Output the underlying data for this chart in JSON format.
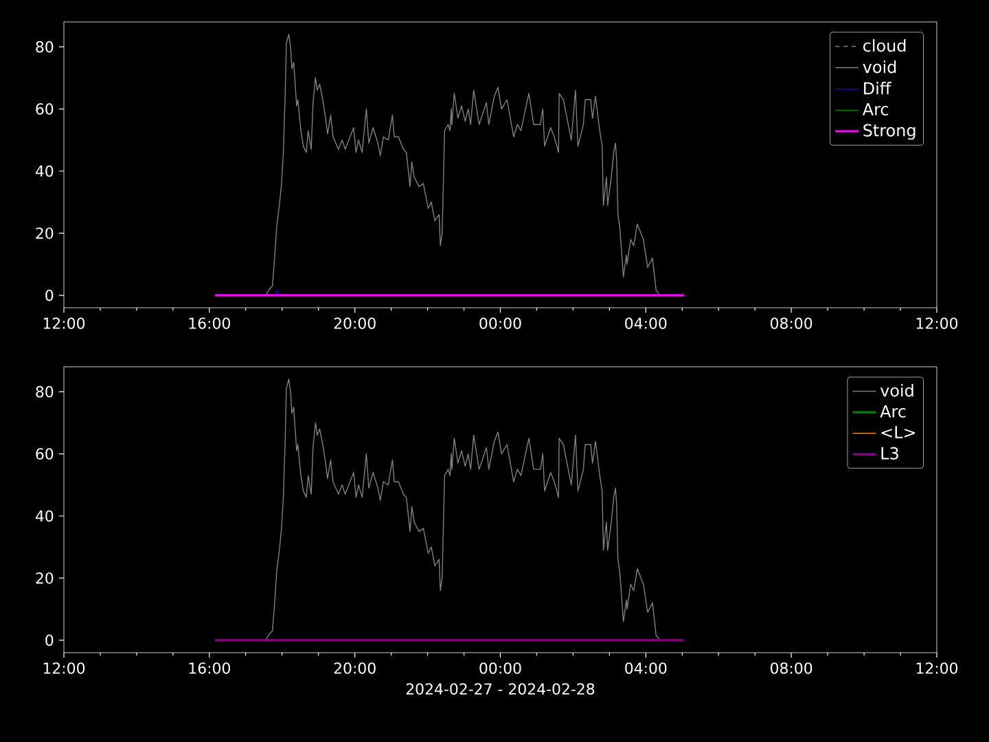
{
  "chart_data": [
    {
      "type": "line",
      "xlim": [
        "2024-02-27T12:00",
        "2024-02-28T12:00"
      ],
      "ylim": [
        -4,
        88
      ],
      "yticks": [
        0,
        20,
        40,
        60,
        80
      ],
      "xticks": [
        {
          "value": "2024-02-27T12:00",
          "label": "12:00"
        },
        {
          "value": "2024-02-27T13:00",
          "label": null
        },
        {
          "value": "2024-02-27T14:00",
          "label": null
        },
        {
          "value": "2024-02-27T15:00",
          "label": null
        },
        {
          "value": "2024-02-27T16:00",
          "label": "16:00"
        },
        {
          "value": "2024-02-27T17:00",
          "label": null
        },
        {
          "value": "2024-02-27T18:00",
          "label": null
        },
        {
          "value": "2024-02-27T19:00",
          "label": null
        },
        {
          "value": "2024-02-27T20:00",
          "label": "20:00"
        },
        {
          "value": "2024-02-27T21:00",
          "label": null
        },
        {
          "value": "2024-02-27T22:00",
          "label": null
        },
        {
          "value": "2024-02-27T23:00",
          "label": null
        },
        {
          "value": "2024-02-28T00:00",
          "label": "00:00"
        },
        {
          "value": "2024-02-28T01:00",
          "label": null
        },
        {
          "value": "2024-02-28T02:00",
          "label": null
        },
        {
          "value": "2024-02-28T03:00",
          "label": null
        },
        {
          "value": "2024-02-28T04:00",
          "label": "04:00"
        },
        {
          "value": "2024-02-28T05:00",
          "label": null
        },
        {
          "value": "2024-02-28T06:00",
          "label": null
        },
        {
          "value": "2024-02-28T07:00",
          "label": null
        },
        {
          "value": "2024-02-28T08:00",
          "label": "08:00"
        },
        {
          "value": "2024-02-28T09:00",
          "label": null
        },
        {
          "value": "2024-02-28T10:00",
          "label": null
        },
        {
          "value": "2024-02-28T11:00",
          "label": null
        },
        {
          "value": "2024-02-28T12:00",
          "label": "12:00"
        }
      ],
      "legend": "top right",
      "series": [
        {
          "name": "cloud",
          "color": "#808080",
          "line_style": "dashed"
        },
        {
          "name": "void",
          "color": "#808080",
          "x": [
            "2024-02-27T17:33",
            "2024-02-27T17:39",
            "2024-02-27T17:44",
            "2024-02-27T17:48",
            "2024-02-27T17:51",
            "2024-02-27T17:56",
            "2024-02-27T17:59",
            "2024-02-27T18:02",
            "2024-02-27T18:05",
            "2024-02-27T18:07",
            "2024-02-27T18:11",
            "2024-02-27T18:14",
            "2024-02-27T18:16",
            "2024-02-27T18:19",
            "2024-02-27T18:24",
            "2024-02-27T18:26",
            "2024-02-27T18:31",
            "2024-02-27T18:35",
            "2024-02-27T18:40",
            "2024-02-27T18:43",
            "2024-02-27T18:48",
            "2024-02-27T18:51",
            "2024-02-27T18:55",
            "2024-02-27T18:58",
            "2024-02-27T19:02",
            "2024-02-27T19:07",
            "2024-02-27T19:11",
            "2024-02-27T19:15",
            "2024-02-27T19:20",
            "2024-02-27T19:24",
            "2024-02-27T19:33",
            "2024-02-27T19:39",
            "2024-02-27T19:44",
            "2024-02-27T19:52",
            "2024-02-27T19:58",
            "2024-02-27T20:02",
            "2024-02-27T20:06",
            "2024-02-27T20:12",
            "2024-02-27T20:19",
            "2024-02-27T20:23",
            "2024-02-27T20:30",
            "2024-02-27T20:38",
            "2024-02-27T20:42",
            "2024-02-27T20:47",
            "2024-02-27T20:55",
            "2024-02-27T21:02",
            "2024-02-27T21:05",
            "2024-02-27T21:12",
            "2024-02-27T21:20",
            "2024-02-27T21:25",
            "2024-02-27T21:31",
            "2024-02-27T21:34",
            "2024-02-27T21:38",
            "2024-02-27T21:46",
            "2024-02-27T21:53",
            "2024-02-27T22:01",
            "2024-02-27T22:06",
            "2024-02-27T22:12",
            "2024-02-27T22:19",
            "2024-02-27T22:21",
            "2024-02-27T22:24",
            "2024-02-27T22:28",
            "2024-02-27T22:34",
            "2024-02-27T22:37",
            "2024-02-27T22:39",
            "2024-02-27T22:40",
            "2024-02-27T22:44",
            "2024-02-27T22:50",
            "2024-02-27T22:56",
            "2024-02-27T23:02",
            "2024-02-27T23:07",
            "2024-02-27T23:11",
            "2024-02-27T23:16",
            "2024-02-27T23:25",
            "2024-02-27T23:37",
            "2024-02-27T23:41",
            "2024-02-27T23:50",
            "2024-02-27T23:56",
            "2024-02-28T00:02",
            "2024-02-28T00:11",
            "2024-02-28T00:22",
            "2024-02-28T00:28",
            "2024-02-28T00:34",
            "2024-02-28T00:47",
            "2024-02-28T00:55",
            "2024-02-28T01:06",
            "2024-02-28T01:10",
            "2024-02-28T01:13",
            "2024-02-28T01:23",
            "2024-02-28T01:29",
            "2024-02-28T01:36",
            "2024-02-28T01:37",
            "2024-02-28T01:44",
            "2024-02-28T01:52",
            "2024-02-28T01:57",
            "2024-02-28T02:04",
            "2024-02-28T02:08",
            "2024-02-28T02:17",
            "2024-02-28T02:20",
            "2024-02-28T02:29",
            "2024-02-28T02:32",
            "2024-02-28T02:37",
            "2024-02-28T02:44",
            "2024-02-28T02:48",
            "2024-02-28T02:50",
            "2024-02-28T02:55",
            "2024-02-28T02:57",
            "2024-02-28T03:03",
            "2024-02-28T03:07",
            "2024-02-28T03:10",
            "2024-02-28T03:12",
            "2024-02-28T03:14",
            "2024-02-28T03:17",
            "2024-02-28T03:23",
            "2024-02-28T03:28",
            "2024-02-28T03:29",
            "2024-02-28T03:35",
            "2024-02-28T03:40",
            "2024-02-28T03:46",
            "2024-02-28T03:56",
            "2024-02-28T04:03",
            "2024-02-28T04:11",
            "2024-02-28T04:17",
            "2024-02-28T04:22"
          ],
          "values": [
            0,
            2,
            3,
            13,
            22,
            30,
            36,
            46,
            64,
            81,
            84,
            80,
            73,
            75,
            61,
            63,
            53,
            48,
            46,
            53,
            47,
            62,
            70,
            66,
            68,
            63,
            58,
            52,
            58,
            51,
            47,
            50,
            47,
            51,
            54,
            46,
            50,
            46,
            60,
            49,
            54,
            49,
            45,
            51,
            50,
            58,
            51,
            51,
            47,
            46,
            35,
            43,
            38,
            35,
            36,
            28,
            30,
            24,
            26,
            16,
            20,
            53,
            55,
            53,
            60,
            55,
            65,
            57,
            61,
            56,
            60,
            55,
            66,
            55,
            62,
            55,
            64,
            67,
            60,
            63,
            51,
            55,
            53,
            65,
            55,
            55,
            60,
            48,
            54,
            51,
            46,
            65,
            63,
            55,
            50,
            66,
            48,
            55,
            63,
            63,
            57,
            64,
            53,
            48,
            29,
            38,
            29,
            38,
            46,
            49,
            43,
            26,
            22,
            6,
            13,
            10,
            18,
            16,
            23,
            18,
            9,
            12,
            1.5,
            0.5
          ]
        },
        {
          "name": "Diff",
          "color": "#0000ff",
          "x": [
            "2024-02-27T17:48",
            "2024-02-27T17:51",
            "2024-02-27T17:54"
          ],
          "values": [
            0,
            1.5,
            0
          ]
        },
        {
          "name": "Arc",
          "color": "#008000"
        },
        {
          "name": "Strong",
          "color": "#ff00ff",
          "x": [
            "2024-02-27T16:09",
            "2024-02-28T05:03"
          ],
          "values": [
            0,
            0
          ]
        }
      ]
    },
    {
      "type": "line",
      "xlim": [
        "2024-02-27T12:00",
        "2024-02-28T12:00"
      ],
      "ylim": [
        -4,
        88
      ],
      "yticks": [
        0,
        20,
        40,
        60,
        80
      ],
      "xlabel": "2024-02-27 - 2024-02-28",
      "xticks": [
        {
          "value": "2024-02-27T12:00",
          "label": "12:00"
        },
        {
          "value": "2024-02-27T13:00",
          "label": null
        },
        {
          "value": "2024-02-27T14:00",
          "label": null
        },
        {
          "value": "2024-02-27T15:00",
          "label": null
        },
        {
          "value": "2024-02-27T16:00",
          "label": "16:00"
        },
        {
          "value": "2024-02-27T17:00",
          "label": null
        },
        {
          "value": "2024-02-27T18:00",
          "label": null
        },
        {
          "value": "2024-02-27T19:00",
          "label": null
        },
        {
          "value": "2024-02-27T20:00",
          "label": "20:00"
        },
        {
          "value": "2024-02-27T21:00",
          "label": null
        },
        {
          "value": "2024-02-27T22:00",
          "label": null
        },
        {
          "value": "2024-02-27T23:00",
          "label": null
        },
        {
          "value": "2024-02-28T00:00",
          "label": "00:00"
        },
        {
          "value": "2024-02-28T01:00",
          "label": null
        },
        {
          "value": "2024-02-28T02:00",
          "label": null
        },
        {
          "value": "2024-02-28T03:00",
          "label": null
        },
        {
          "value": "2024-02-28T04:00",
          "label": "04:00"
        },
        {
          "value": "2024-02-28T05:00",
          "label": null
        },
        {
          "value": "2024-02-28T06:00",
          "label": null
        },
        {
          "value": "2024-02-28T07:00",
          "label": null
        },
        {
          "value": "2024-02-28T08:00",
          "label": "08:00"
        },
        {
          "value": "2024-02-28T09:00",
          "label": null
        },
        {
          "value": "2024-02-28T10:00",
          "label": null
        },
        {
          "value": "2024-02-28T11:00",
          "label": null
        },
        {
          "value": "2024-02-28T12:00",
          "label": "12:00"
        }
      ],
      "legend": "top right",
      "series": [
        {
          "name": "void",
          "color": "#808080",
          "x": [
            "2024-02-27T17:33",
            "2024-02-27T17:39",
            "2024-02-27T17:44",
            "2024-02-27T17:48",
            "2024-02-27T17:51",
            "2024-02-27T17:56",
            "2024-02-27T17:59",
            "2024-02-27T18:02",
            "2024-02-27T18:05",
            "2024-02-27T18:07",
            "2024-02-27T18:11",
            "2024-02-27T18:14",
            "2024-02-27T18:16",
            "2024-02-27T18:19",
            "2024-02-27T18:24",
            "2024-02-27T18:26",
            "2024-02-27T18:31",
            "2024-02-27T18:35",
            "2024-02-27T18:40",
            "2024-02-27T18:43",
            "2024-02-27T18:48",
            "2024-02-27T18:51",
            "2024-02-27T18:55",
            "2024-02-27T18:58",
            "2024-02-27T19:02",
            "2024-02-27T19:07",
            "2024-02-27T19:11",
            "2024-02-27T19:15",
            "2024-02-27T19:20",
            "2024-02-27T19:24",
            "2024-02-27T19:33",
            "2024-02-27T19:39",
            "2024-02-27T19:44",
            "2024-02-27T19:52",
            "2024-02-27T19:58",
            "2024-02-27T20:02",
            "2024-02-27T20:06",
            "2024-02-27T20:12",
            "2024-02-27T20:19",
            "2024-02-27T20:23",
            "2024-02-27T20:30",
            "2024-02-27T20:38",
            "2024-02-27T20:42",
            "2024-02-27T20:47",
            "2024-02-27T20:55",
            "2024-02-27T21:02",
            "2024-02-27T21:05",
            "2024-02-27T21:12",
            "2024-02-27T21:20",
            "2024-02-27T21:25",
            "2024-02-27T21:31",
            "2024-02-27T21:34",
            "2024-02-27T21:38",
            "2024-02-27T21:46",
            "2024-02-27T21:53",
            "2024-02-27T22:01",
            "2024-02-27T22:06",
            "2024-02-27T22:12",
            "2024-02-27T22:19",
            "2024-02-27T22:21",
            "2024-02-27T22:24",
            "2024-02-27T22:28",
            "2024-02-27T22:34",
            "2024-02-27T22:37",
            "2024-02-27T22:39",
            "2024-02-27T22:40",
            "2024-02-27T22:44",
            "2024-02-27T22:50",
            "2024-02-27T22:56",
            "2024-02-27T23:02",
            "2024-02-27T23:07",
            "2024-02-27T23:11",
            "2024-02-27T23:16",
            "2024-02-27T23:25",
            "2024-02-27T23:37",
            "2024-02-27T23:41",
            "2024-02-27T23:50",
            "2024-02-27T23:56",
            "2024-02-28T00:02",
            "2024-02-28T00:11",
            "2024-02-28T00:22",
            "2024-02-28T00:28",
            "2024-02-28T00:34",
            "2024-02-28T00:47",
            "2024-02-28T00:55",
            "2024-02-28T01:06",
            "2024-02-28T01:10",
            "2024-02-28T01:13",
            "2024-02-28T01:23",
            "2024-02-28T01:29",
            "2024-02-28T01:36",
            "2024-02-28T01:37",
            "2024-02-28T01:44",
            "2024-02-28T01:52",
            "2024-02-28T01:57",
            "2024-02-28T02:04",
            "2024-02-28T02:08",
            "2024-02-28T02:17",
            "2024-02-28T02:20",
            "2024-02-28T02:29",
            "2024-02-28T02:32",
            "2024-02-28T02:37",
            "2024-02-28T02:44",
            "2024-02-28T02:48",
            "2024-02-28T02:50",
            "2024-02-28T02:55",
            "2024-02-28T02:57",
            "2024-02-28T03:03",
            "2024-02-28T03:07",
            "2024-02-28T03:10",
            "2024-02-28T03:12",
            "2024-02-28T03:14",
            "2024-02-28T03:17",
            "2024-02-28T03:23",
            "2024-02-28T03:28",
            "2024-02-28T03:29",
            "2024-02-28T03:35",
            "2024-02-28T03:40",
            "2024-02-28T03:46",
            "2024-02-28T03:56",
            "2024-02-28T04:03",
            "2024-02-28T04:11",
            "2024-02-28T04:17",
            "2024-02-28T04:22"
          ],
          "values": [
            0,
            2,
            3,
            13,
            22,
            30,
            36,
            46,
            64,
            81,
            84,
            80,
            73,
            75,
            61,
            63,
            53,
            48,
            46,
            53,
            47,
            62,
            70,
            66,
            68,
            63,
            58,
            52,
            58,
            51,
            47,
            50,
            47,
            51,
            54,
            46,
            50,
            46,
            60,
            49,
            54,
            49,
            45,
            51,
            50,
            58,
            51,
            51,
            47,
            46,
            35,
            43,
            38,
            35,
            36,
            28,
            30,
            24,
            26,
            16,
            20,
            53,
            55,
            53,
            60,
            55,
            65,
            57,
            61,
            56,
            60,
            55,
            66,
            55,
            62,
            55,
            64,
            67,
            60,
            63,
            51,
            55,
            53,
            65,
            55,
            55,
            60,
            48,
            54,
            51,
            46,
            65,
            63,
            55,
            50,
            66,
            48,
            55,
            63,
            63,
            57,
            64,
            53,
            48,
            29,
            38,
            29,
            38,
            46,
            49,
            43,
            26,
            22,
            6,
            13,
            10,
            18,
            16,
            23,
            18,
            9,
            12,
            1.5,
            0.5
          ]
        },
        {
          "name": "Arc",
          "color": "#008000"
        },
        {
          "name": "<L>",
          "color": "#ffa500"
        },
        {
          "name": "L3",
          "color": "#800080",
          "x": [
            "2024-02-27T16:09",
            "2024-02-28T05:03"
          ],
          "values": [
            0,
            0
          ]
        }
      ]
    }
  ]
}
